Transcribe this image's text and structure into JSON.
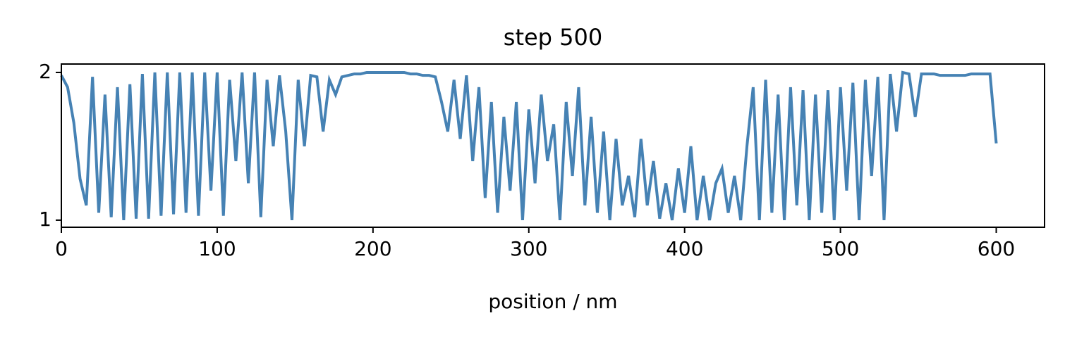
{
  "chart_data": {
    "type": "line",
    "title": "step 500",
    "xlabel": "position / nm",
    "x": [
      0,
      4,
      8,
      12,
      16,
      20,
      24,
      28,
      32,
      36,
      40,
      44,
      48,
      52,
      56,
      60,
      64,
      68,
      72,
      76,
      80,
      84,
      88,
      92,
      96,
      100,
      104,
      108,
      112,
      116,
      120,
      124,
      128,
      132,
      136,
      140,
      144,
      148,
      152,
      156,
      160,
      164,
      168,
      172,
      176,
      180,
      184,
      188,
      192,
      196,
      200,
      204,
      208,
      212,
      216,
      220,
      224,
      228,
      232,
      236,
      240,
      244,
      248,
      252,
      256,
      260,
      264,
      268,
      272,
      276,
      280,
      284,
      288,
      292,
      296,
      300,
      304,
      308,
      312,
      316,
      320,
      324,
      328,
      332,
      336,
      340,
      344,
      348,
      352,
      356,
      360,
      364,
      368,
      372,
      376,
      380,
      384,
      388,
      392,
      396,
      400,
      404,
      408,
      412,
      416,
      420,
      424,
      428,
      432,
      436,
      440,
      444,
      448,
      452,
      456,
      460,
      464,
      468,
      472,
      476,
      480,
      484,
      488,
      492,
      496,
      500,
      504,
      508,
      512,
      516,
      520,
      524,
      528,
      532,
      536,
      540,
      544,
      548,
      552,
      556,
      560,
      564,
      568,
      572,
      576,
      580,
      584,
      588,
      592,
      596,
      600
    ],
    "values": [
      1.98,
      1.9,
      1.66,
      1.28,
      1.1,
      1.97,
      1.05,
      1.85,
      1.02,
      1.9,
      1.0,
      1.92,
      1.01,
      1.99,
      1.01,
      2.0,
      1.03,
      2.0,
      1.04,
      2.0,
      1.05,
      2.0,
      1.03,
      2.0,
      1.2,
      2.0,
      1.03,
      1.95,
      1.4,
      2.0,
      1.25,
      2.0,
      1.02,
      1.95,
      1.5,
      1.98,
      1.6,
      1.0,
      1.95,
      1.5,
      1.98,
      1.97,
      1.6,
      1.95,
      1.85,
      1.97,
      1.98,
      1.99,
      1.99,
      2.0,
      2.0,
      2.0,
      2.0,
      2.0,
      2.0,
      2.0,
      1.99,
      1.99,
      1.98,
      1.98,
      1.97,
      1.8,
      1.6,
      1.95,
      1.55,
      1.98,
      1.4,
      1.9,
      1.15,
      1.8,
      1.05,
      1.7,
      1.2,
      1.8,
      1.0,
      1.75,
      1.25,
      1.85,
      1.4,
      1.65,
      1.0,
      1.8,
      1.3,
      1.9,
      1.1,
      1.7,
      1.05,
      1.6,
      1.0,
      1.55,
      1.1,
      1.3,
      1.02,
      1.55,
      1.1,
      1.4,
      1.01,
      1.25,
      1.0,
      1.35,
      1.05,
      1.5,
      1.0,
      1.3,
      1.0,
      1.25,
      1.35,
      1.05,
      1.3,
      1.0,
      1.5,
      1.9,
      1.0,
      1.95,
      1.05,
      1.85,
      1.0,
      1.9,
      1.1,
      1.88,
      1.0,
      1.85,
      1.05,
      1.88,
      1.0,
      1.9,
      1.2,
      1.93,
      1.0,
      1.95,
      1.3,
      1.97,
      1.0,
      1.99,
      1.6,
      2.0,
      1.99,
      1.7,
      1.99,
      1.99,
      1.99,
      1.98,
      1.98,
      1.98,
      1.98,
      1.98,
      1.99,
      1.99,
      1.99,
      1.99,
      1.52
    ],
    "color": "#4682b4",
    "xlim": [
      0,
      631
    ],
    "xticks": [
      0,
      100,
      200,
      300,
      400,
      500,
      600
    ],
    "ylim": [
      0.952,
      2.057
    ],
    "yticks": [
      1,
      2
    ]
  }
}
